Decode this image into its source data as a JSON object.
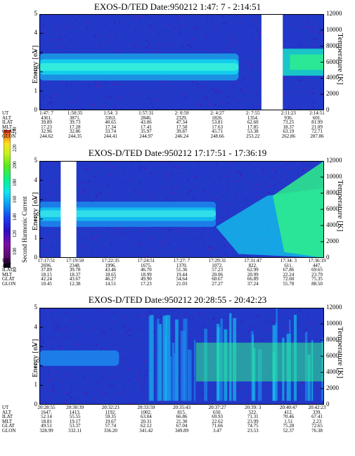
{
  "chart_data": [
    {
      "type": "heatmap",
      "title": "EXOS-D/TED   Date:950212   1:47: 7 - 2:14:51",
      "ylabel": "Energy [eV]",
      "ylabel_right": "Temperature [K]",
      "ylim": [
        0,
        5
      ],
      "y_ticks": [
        "0",
        "1",
        "2",
        "3",
        "4",
        "5"
      ],
      "ylim_right": [
        0,
        12000
      ],
      "y_ticks_right": [
        "0",
        "2000",
        "4000",
        "6000",
        "8000",
        "10000",
        "12000"
      ],
      "data_gap": [
        0.78,
        0.855
      ],
      "ephemeris": [
        {
          "label": "UT",
          "values": [
            "1:47: 7",
            "1:50:35",
            "1:54: 3",
            "1:57:31",
            "2: 0:59",
            "2: 4:27",
            "2: 7:55",
            "2:11:23",
            "2:14:51"
          ]
        },
        {
          "label": "ALT",
          "values": [
            "4361.",
            "3871.",
            "3363.",
            "2846.",
            "2329.",
            "1826.",
            "1354.",
            "936.",
            "601."
          ]
        },
        {
          "label": "ILAT",
          "values": [
            "39.89",
            "39.73",
            "40.65",
            "43.06",
            "47.34",
            "53.81",
            "62.60",
            "73.25",
            "81.99"
          ]
        },
        {
          "label": "MLT",
          "values": [
            "17.23",
            "17.28",
            "17.34",
            "17.41",
            "17.50",
            "17.63",
            "17.85",
            "18.37",
            "21.09"
          ]
        },
        {
          "label": "GLAT",
          "values": [
            "32.96",
            "32.86",
            "33.74",
            "35.97",
            "39.87",
            "45.71",
            "53.38",
            "63.19",
            "72.71"
          ]
        },
        {
          "label": "GLON",
          "values": [
            "244.62",
            "244.35",
            "244.41",
            "244.97",
            "246.24",
            "248.66",
            "253.22",
            "262.86",
            "287.86"
          ]
        }
      ]
    },
    {
      "type": "heatmap",
      "title": "EXOS-D/TED   Date:950212   17:17:51 - 17:36:19",
      "ylabel": "Energy [eV]",
      "ylabel_right": "Temperature [K]",
      "ylim": [
        0,
        5
      ],
      "y_ticks": [
        "0",
        "1",
        "2",
        "3",
        "4",
        "5"
      ],
      "ylim_right": [
        0,
        12000
      ],
      "y_ticks_right": [
        "0",
        "2000",
        "4000",
        "6000",
        "8000",
        "10000",
        "12000"
      ],
      "data_gap": [
        0.075,
        0.13
      ],
      "ephemeris": [
        {
          "label": "UT",
          "values": [
            "17:17:51",
            "17:19:50",
            "17:22:35",
            "17:24:51",
            "17:27: 7",
            "17:29:31",
            "17:31:47",
            "17:34: 3",
            "17:36:19"
          ]
        },
        {
          "label": "ALT",
          "values": [
            "2696.",
            "2348.",
            "1996.",
            "1675.",
            "1370.",
            "1072.",
            "822.",
            "611.",
            "447."
          ]
        },
        {
          "label": "ILAT",
          "values": [
            "37.89",
            "39.78",
            "43.46",
            "46.70",
            "51.36",
            "57.23",
            "62.99",
            "67.86",
            "69.65"
          ]
        },
        {
          "label": "MLT",
          "values": [
            "18.15",
            "18.37",
            "18.65",
            "18.99",
            "19.44",
            "20.06",
            "20.99",
            "22.24",
            "23.79"
          ]
        },
        {
          "label": "GLAT",
          "values": [
            "42.24",
            "43.67",
            "46.27",
            "49.90",
            "54.64",
            "60.67",
            "66.89",
            "72.60",
            "75.35"
          ]
        },
        {
          "label": "GLON",
          "values": [
            "10.45",
            "12.38",
            "14.51",
            "17.23",
            "21.03",
            "27.27",
            "37.24",
            "55.78",
            "88.50"
          ]
        }
      ]
    },
    {
      "type": "heatmap",
      "title": "EXOS-D/TED   Date:950212   20:28:55 - 20:42:23",
      "ylabel": "Energy [eV]",
      "ylabel_right": "Temperature [K]",
      "ylim": [
        0,
        5
      ],
      "y_ticks": [
        "0",
        "1",
        "2",
        "3",
        "4",
        "5"
      ],
      "ylim_right": [
        0,
        12000
      ],
      "y_ticks_right": [
        "0",
        "2000",
        "4000",
        "6000",
        "8000",
        "10000",
        "12000"
      ],
      "data_gap": null,
      "ephemeris": [
        {
          "label": "UT",
          "values": [
            "20:28:55",
            "20:30:39",
            "20:32:23",
            "20:33:59",
            "20:35:43",
            "20:37:27",
            "20:39: 3",
            "20:40:47",
            "20:42:23"
          ]
        },
        {
          "label": "ALT",
          "values": [
            "1647.",
            "1413.",
            "1192.",
            "1002.",
            "815.",
            "650.",
            "522.",
            "412.",
            "339."
          ]
        },
        {
          "label": "ILAT",
          "values": [
            "52.14",
            "55.55",
            "59.35",
            "63.04",
            "66.86",
            "69.93",
            "71.31",
            "70.46",
            "67.41"
          ]
        },
        {
          "label": "MLT",
          "values": [
            "18.81",
            "19.17",
            "19.67",
            "20.31",
            "21.30",
            "22.62",
            "23.99",
            "1.51",
            "2.23"
          ]
        },
        {
          "label": "GLAT",
          "values": [
            "49.51",
            "53.37",
            "57.74",
            "62.12",
            "67.04",
            "71.66",
            "74.75",
            "75.28",
            "72.65"
          ]
        },
        {
          "label": "GLON",
          "values": [
            "328.99",
            "332.11",
            "336.20",
            "341.42",
            "349.89",
            "3.47",
            "23.53",
            "52.37",
            "76.38"
          ]
        }
      ]
    }
  ],
  "colorbar": {
    "label": "Second Harmonic Current",
    "range": [
      80,
      240
    ],
    "ticks": [
      "80",
      "100",
      "120",
      "140",
      "160",
      "180",
      "200",
      "220",
      "240"
    ],
    "colors": [
      "#000000",
      "#5a0a6e",
      "#7a0ea0",
      "#2a0ec4",
      "#1b3ef0",
      "#0a9cf5",
      "#12e6ee",
      "#0af28a",
      "#5ae81e",
      "#c8f21e",
      "#f8e21e",
      "#f8921e",
      "#e41e1e"
    ]
  }
}
